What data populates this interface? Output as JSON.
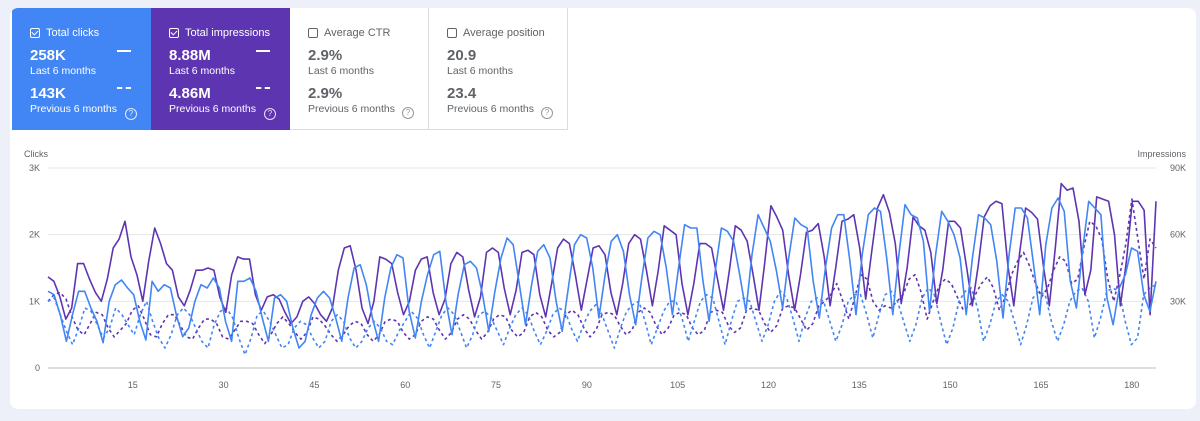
{
  "cards": [
    {
      "id": "clicks",
      "label": "Total clicks",
      "checked": true,
      "bg": "#4285f4",
      "current_value": "258K",
      "current_label": "Last 6 months",
      "previous_value": "143K",
      "previous_label": "Previous 6 months",
      "help_icon": "?"
    },
    {
      "id": "impressions",
      "label": "Total impressions",
      "checked": true,
      "bg": "#5e35b1",
      "current_value": "8.88M",
      "current_label": "Last 6 months",
      "previous_value": "4.86M",
      "previous_label": "Previous 6 months",
      "help_icon": "?"
    },
    {
      "id": "ctr",
      "label": "Average CTR",
      "checked": false,
      "bg": "#ffffff",
      "current_value": "2.9%",
      "current_label": "Last 6 months",
      "previous_value": "2.9%",
      "previous_label": "Previous 6 months",
      "help_icon": "?"
    },
    {
      "id": "position",
      "label": "Average position",
      "checked": false,
      "bg": "#ffffff",
      "current_value": "20.9",
      "current_label": "Last 6 months",
      "previous_value": "23.4",
      "previous_label": "Previous 6 months",
      "help_icon": "?"
    }
  ],
  "chart_data": {
    "type": "line",
    "left_axis": {
      "title": "Clicks",
      "ticks": [
        "0",
        "1K",
        "2K",
        "3K"
      ],
      "range": [
        0,
        3000
      ]
    },
    "right_axis": {
      "title": "Impressions",
      "ticks": [
        "",
        "30K",
        "60K",
        "90K"
      ],
      "range": [
        0,
        90000
      ]
    },
    "x_ticks": [
      15,
      30,
      45,
      60,
      75,
      90,
      105,
      120,
      135,
      150,
      165,
      180
    ],
    "x_range": [
      1,
      184
    ],
    "grid": true,
    "colors": {
      "clicks": "#4285f4",
      "impressions": "#5e35b1",
      "grid": "#e6e6e6"
    },
    "series": [
      {
        "metric": "clicks",
        "period": "current",
        "dash": false,
        "axis": "left",
        "values": [
          1150,
          1100,
          800,
          400,
          800,
          1150,
          1150,
          900,
          700,
          380,
          1000,
          1250,
          1320,
          1200,
          1100,
          700,
          420,
          1300,
          1150,
          1250,
          1200,
          780,
          470,
          600,
          1000,
          1250,
          1200,
          1350,
          1200,
          700,
          400,
          1300,
          1300,
          1350,
          1150,
          750,
          400,
          1050,
          1100,
          1000,
          600,
          300,
          400,
          800,
          1050,
          1150,
          1050,
          750,
          400,
          1050,
          1500,
          1550,
          1250,
          750,
          400,
          1050,
          1500,
          1700,
          1650,
          850,
          450,
          1000,
          1400,
          1700,
          1750,
          1000,
          500,
          1100,
          1550,
          1600,
          1500,
          1100,
          550,
          1150,
          1650,
          1950,
          1850,
          1250,
          650,
          1250,
          1750,
          1850,
          1650,
          1000,
          550,
          1200,
          1850,
          2000,
          1950,
          1500,
          750,
          1400,
          1900,
          2000,
          1750,
          1100,
          650,
          1350,
          1950,
          2050,
          2000,
          1500,
          800,
          1500,
          2150,
          2100,
          2100,
          1300,
          700,
          1450,
          2100,
          2050,
          1900,
          1400,
          850,
          1700,
          2300,
          2100,
          1900,
          1450,
          900,
          1650,
          2250,
          2150,
          2100,
          1300,
          750,
          1500,
          2100,
          2300,
          2300,
          1600,
          800,
          1700,
          2300,
          2400,
          2350,
          1650,
          800,
          1700,
          2450,
          2300,
          2250,
          1900,
          850,
          1700,
          2350,
          2200,
          2000,
          1650,
          800,
          1650,
          2300,
          2250,
          2150,
          1600,
          750,
          1700,
          2400,
          2400,
          2250,
          1550,
          800,
          1850,
          2400,
          2550,
          2350,
          1300,
          900,
          1750,
          2500,
          2400,
          2300,
          1050,
          650,
          1200,
          1400,
          1800,
          1750,
          1100,
          850,
          1300
        ]
      },
      {
        "metric": "clicks",
        "period": "previous",
        "dash": true,
        "axis": "left",
        "values": [
          1000,
          1050,
          800,
          550,
          350,
          600,
          900,
          850,
          650,
          450,
          600,
          900,
          800,
          650,
          500,
          800,
          1000,
          700,
          450,
          300,
          500,
          800,
          900,
          800,
          600,
          400,
          300,
          650,
          850,
          900,
          750,
          450,
          200,
          450,
          800,
          850,
          700,
          500,
          300,
          350,
          600,
          700,
          650,
          450,
          300,
          400,
          700,
          800,
          700,
          450,
          300,
          400,
          600,
          700,
          600,
          400,
          350,
          550,
          700,
          850,
          750,
          500,
          300,
          550,
          800,
          900,
          800,
          550,
          300,
          500,
          800,
          850,
          750,
          550,
          350,
          600,
          800,
          900,
          800,
          550,
          350,
          550,
          800,
          900,
          850,
          600,
          400,
          650,
          850,
          950,
          800,
          550,
          300,
          600,
          850,
          950,
          1000,
          700,
          350,
          600,
          850,
          1000,
          1000,
          750,
          400,
          700,
          1000,
          1100,
          1050,
          700,
          350,
          700,
          1000,
          1050,
          1000,
          700,
          400,
          650,
          1000,
          1150,
          1050,
          750,
          400,
          750,
          1000,
          1050,
          1000,
          700,
          400,
          650,
          1000,
          1100,
          1100,
          800,
          450,
          800,
          1100,
          1150,
          1000,
          700,
          400,
          650,
          1050,
          1200,
          1100,
          700,
          350,
          600,
          1000,
          1150,
          1200,
          900,
          400,
          650,
          1000,
          1100,
          1000,
          700,
          350,
          650,
          1050,
          1150,
          1100,
          700,
          400,
          650,
          1000,
          1150,
          1200,
          1000,
          450,
          750,
          1150,
          1200,
          1150,
          700,
          350,
          450,
          1100,
          1200,
          1250
        ]
      },
      {
        "metric": "impressions",
        "period": "current",
        "dash": false,
        "axis": "right",
        "values": [
          41000,
          39000,
          32000,
          22000,
          27000,
          47000,
          47000,
          40000,
          34000,
          30000,
          40000,
          54000,
          58000,
          66000,
          50000,
          42000,
          30000,
          48000,
          63000,
          56000,
          47000,
          44000,
          32000,
          28000,
          35000,
          44000,
          44000,
          45000,
          44000,
          32000,
          25000,
          42000,
          50000,
          49000,
          49000,
          33000,
          26000,
          32000,
          33000,
          31000,
          25000,
          20000,
          23000,
          30000,
          32000,
          29000,
          24000,
          21000,
          27000,
          44000,
          54000,
          55000,
          44000,
          27000,
          20000,
          30000,
          50000,
          49000,
          47000,
          34000,
          24000,
          30000,
          44000,
          49000,
          50000,
          34000,
          24000,
          31000,
          47000,
          52000,
          50000,
          35000,
          23000,
          32000,
          52000,
          54000,
          52000,
          36000,
          24000,
          35000,
          52000,
          53000,
          51000,
          33000,
          23000,
          38000,
          54000,
          58000,
          56000,
          42000,
          26000,
          40000,
          54000,
          55000,
          51000,
          34000,
          24000,
          38000,
          56000,
          60000,
          58000,
          44000,
          28000,
          44000,
          64000,
          62000,
          60000,
          38000,
          24000,
          38000,
          56000,
          56000,
          54000,
          40000,
          26000,
          44000,
          64000,
          62000,
          57000,
          42000,
          26000,
          48000,
          73000,
          68000,
          62000,
          42000,
          26000,
          42000,
          61000,
          62000,
          65000,
          50000,
          28000,
          46000,
          66000,
          67000,
          69000,
          54000,
          31000,
          52000,
          72000,
          78000,
          70000,
          56000,
          29000,
          45000,
          68000,
          64000,
          62000,
          52000,
          29000,
          44000,
          66000,
          66000,
          63000,
          46000,
          28000,
          46000,
          68000,
          73000,
          75000,
          74000,
          46000,
          28000,
          52000,
          72000,
          70000,
          67000,
          46000,
          28000,
          54000,
          83000,
          80000,
          81000,
          66000,
          33000,
          44000,
          77000,
          76000,
          75000,
          60000,
          28000,
          48000,
          75000,
          75000,
          71000,
          24000,
          75000
        ]
      },
      {
        "metric": "impressions",
        "period": "previous",
        "dash": true,
        "axis": "right",
        "values": [
          30000,
          33000,
          34000,
          31000,
          23000,
          17000,
          15000,
          20000,
          25000,
          24000,
          18000,
          14000,
          17000,
          20000,
          26000,
          28000,
          22000,
          15000,
          14000,
          20000,
          24000,
          24000,
          19000,
          14000,
          13000,
          18000,
          22000,
          22000,
          20000,
          14000,
          13000,
          17000,
          21000,
          21000,
          20000,
          15000,
          11000,
          15000,
          20000,
          23000,
          20000,
          16000,
          13000,
          16000,
          23000,
          22000,
          19000,
          15000,
          12000,
          15000,
          19000,
          21000,
          20000,
          15000,
          12000,
          15000,
          21000,
          22000,
          21000,
          16000,
          13000,
          15000,
          21000,
          23000,
          22000,
          17000,
          13000,
          16000,
          22000,
          24000,
          22000,
          17000,
          13000,
          16000,
          22000,
          24000,
          23000,
          17000,
          14000,
          16000,
          23000,
          25000,
          23000,
          17000,
          14000,
          16000,
          24000,
          26000,
          24000,
          18000,
          14000,
          17000,
          24000,
          25000,
          24000,
          19000,
          15000,
          17000,
          25000,
          27000,
          25000,
          19000,
          15000,
          18000,
          24000,
          25000,
          24000,
          18000,
          15000,
          17000,
          25000,
          26000,
          25000,
          19000,
          16000,
          18000,
          26000,
          27000,
          26000,
          20000,
          16000,
          19000,
          27000,
          28000,
          27000,
          22000,
          17000,
          20000,
          28000,
          30000,
          33000,
          38000,
          30000,
          22000,
          32000,
          42000,
          40000,
          30000,
          26000,
          28000,
          27000,
          30000,
          33000,
          40000,
          42000,
          34000,
          22000,
          30000,
          37000,
          40000,
          38000,
          32000,
          26000,
          28000,
          33000,
          38000,
          41000,
          36000,
          26000,
          32000,
          42000,
          48000,
          52000,
          46000,
          38000,
          32000,
          36000,
          44000,
          50000,
          48000,
          38000,
          40000,
          54000,
          66000,
          64000,
          58000,
          40000,
          30000,
          42000,
          56000,
          76000,
          58000,
          40000,
          58000,
          54000
        ]
      }
    ]
  }
}
